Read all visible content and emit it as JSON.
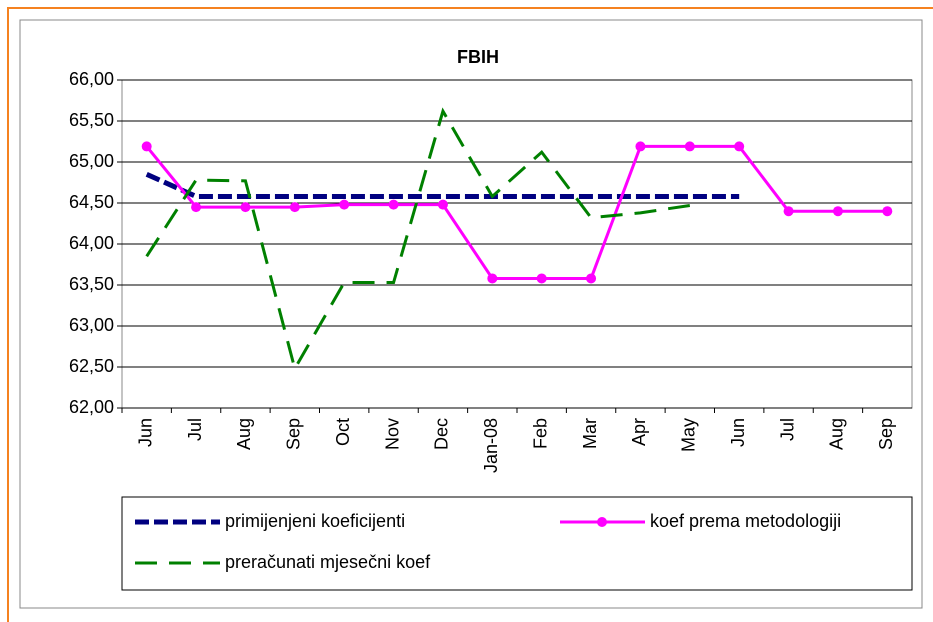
{
  "chart_data": {
    "type": "line",
    "title": "FBIH",
    "categories": [
      "Jun",
      "Jul",
      "Aug",
      "Sep",
      "Oct",
      "Nov",
      "Dec",
      "Jan-08",
      "Feb",
      "Mar",
      "Apr",
      "May",
      "Jun",
      "Jul",
      "Aug",
      "Sep"
    ],
    "series": [
      {
        "name": "primijenjeni koeficijenti",
        "color": "#000080",
        "values": [
          64.85,
          64.58,
          64.58,
          64.58,
          64.58,
          64.58,
          64.58,
          64.58,
          64.58,
          64.58,
          64.58,
          64.58,
          64.58,
          null,
          null,
          null
        ]
      },
      {
        "name": "koef prema metodologiji",
        "color": "#ff00ff",
        "values": [
          65.19,
          64.45,
          64.45,
          64.45,
          64.48,
          64.48,
          64.48,
          63.58,
          63.58,
          63.58,
          65.19,
          65.19,
          65.19,
          64.4,
          64.4,
          64.4
        ]
      },
      {
        "name": "preračunati mjesečni koef",
        "color": "#008000",
        "values": [
          63.85,
          64.78,
          64.77,
          62.48,
          63.53,
          63.53,
          65.62,
          64.58,
          65.12,
          64.32,
          64.38,
          64.47,
          null,
          null,
          null,
          null
        ]
      }
    ],
    "ylim": [
      62,
      66
    ],
    "yticks": [
      {
        "value": 62,
        "label": "62,00"
      },
      {
        "value": 62.5,
        "label": "62,50"
      },
      {
        "value": 63,
        "label": "63,00"
      },
      {
        "value": 63.5,
        "label": "63,50"
      },
      {
        "value": 64,
        "label": "64,00"
      },
      {
        "value": 64.5,
        "label": "64,50"
      },
      {
        "value": 65,
        "label": "65,00"
      },
      {
        "value": 65.5,
        "label": "65,50"
      },
      {
        "value": 66,
        "label": "66,00"
      }
    ],
    "grid": true,
    "legend": "bottom"
  }
}
